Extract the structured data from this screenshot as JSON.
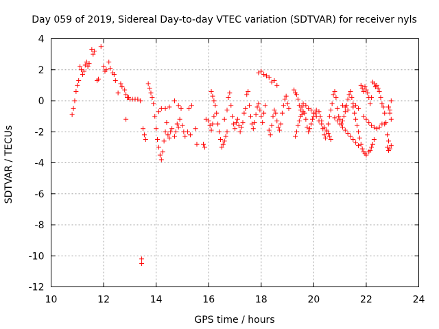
{
  "chart_data": {
    "type": "scatter",
    "title": "Day 059 of 2019, Sidereal Day-to-day VTEC variation (SDTVAR) for receiver nyls",
    "xlabel": "GPS time / hours",
    "ylabel": "SDTVAR / TECUs",
    "xlim": [
      10,
      24
    ],
    "ylim": [
      -12,
      4
    ],
    "xticks": [
      10,
      12,
      14,
      16,
      18,
      20,
      22,
      24
    ],
    "yticks": [
      -12,
      -10,
      -8,
      -6,
      -4,
      -2,
      0,
      2,
      4
    ],
    "grid": true,
    "marker": "+",
    "marker_color": "#ff0000",
    "series": [
      {
        "name": "SDTVAR",
        "points": [
          [
            10.8,
            -0.9
          ],
          [
            10.85,
            -0.5
          ],
          [
            10.9,
            0.0
          ],
          [
            10.95,
            0.6
          ],
          [
            11.0,
            1.0
          ],
          [
            11.05,
            1.3
          ],
          [
            11.1,
            2.2
          ],
          [
            11.15,
            2.0
          ],
          [
            11.2,
            1.7
          ],
          [
            11.25,
            1.9
          ],
          [
            11.3,
            2.3
          ],
          [
            11.35,
            2.5
          ],
          [
            11.4,
            2.2
          ],
          [
            11.45,
            2.4
          ],
          [
            11.55,
            3.3
          ],
          [
            11.6,
            3.0
          ],
          [
            11.65,
            3.2
          ],
          [
            11.75,
            1.3
          ],
          [
            11.8,
            1.4
          ],
          [
            11.9,
            3.5
          ],
          [
            12.0,
            2.2
          ],
          [
            12.05,
            1.9
          ],
          [
            12.1,
            2.0
          ],
          [
            12.2,
            2.5
          ],
          [
            12.25,
            2.1
          ],
          [
            12.35,
            1.8
          ],
          [
            12.4,
            1.7
          ],
          [
            12.45,
            1.3
          ],
          [
            12.55,
            0.5
          ],
          [
            12.65,
            1.1
          ],
          [
            12.7,
            0.9
          ],
          [
            12.8,
            0.7
          ],
          [
            12.85,
            0.4
          ],
          [
            12.9,
            0.2
          ],
          [
            12.95,
            0.2
          ],
          [
            13.0,
            0.1
          ],
          [
            13.1,
            0.1
          ],
          [
            13.2,
            0.1
          ],
          [
            13.3,
            0.1
          ],
          [
            13.4,
            0.0
          ],
          [
            12.85,
            -1.2
          ],
          [
            13.45,
            -10.2
          ],
          [
            13.45,
            -10.5
          ],
          [
            13.5,
            -1.8
          ],
          [
            13.55,
            -2.2
          ],
          [
            13.6,
            -2.5
          ],
          [
            13.7,
            1.1
          ],
          [
            13.75,
            0.8
          ],
          [
            13.8,
            0.5
          ],
          [
            13.85,
            0.2
          ],
          [
            13.9,
            -0.2
          ],
          [
            13.95,
            -1.0
          ],
          [
            14.0,
            -1.8
          ],
          [
            14.05,
            -2.5
          ],
          [
            14.1,
            -3.0
          ],
          [
            14.15,
            -3.5
          ],
          [
            14.2,
            -3.8
          ],
          [
            14.25,
            -3.3
          ],
          [
            14.3,
            -2.6
          ],
          [
            14.35,
            -2.0
          ],
          [
            14.1,
            -0.7
          ],
          [
            14.2,
            -0.5
          ],
          [
            14.35,
            -0.5
          ],
          [
            14.5,
            -0.4
          ],
          [
            14.4,
            -1.4
          ],
          [
            14.45,
            -2.2
          ],
          [
            14.5,
            -2.4
          ],
          [
            14.55,
            -2.0
          ],
          [
            14.6,
            -1.8
          ],
          [
            14.7,
            -2.3
          ],
          [
            14.75,
            -2.0
          ],
          [
            14.8,
            -1.5
          ],
          [
            14.85,
            -1.7
          ],
          [
            14.9,
            -1.2
          ],
          [
            15.0,
            -1.6
          ],
          [
            15.05,
            -2.0
          ],
          [
            15.1,
            -2.3
          ],
          [
            15.2,
            -2.0
          ],
          [
            15.3,
            -2.2
          ],
          [
            14.7,
            0.0
          ],
          [
            14.85,
            -0.3
          ],
          [
            14.95,
            -0.5
          ],
          [
            15.25,
            -0.5
          ],
          [
            15.35,
            -0.3
          ],
          [
            15.5,
            -1.8
          ],
          [
            15.55,
            -2.8
          ],
          [
            15.8,
            -2.8
          ],
          [
            15.85,
            -3.0
          ],
          [
            15.9,
            -1.2
          ],
          [
            16.0,
            -1.3
          ],
          [
            16.05,
            -1.6
          ],
          [
            16.1,
            -1.9
          ],
          [
            16.15,
            -1.5
          ],
          [
            16.2,
            -1.0
          ],
          [
            16.1,
            0.6
          ],
          [
            16.15,
            0.3
          ],
          [
            16.2,
            0.0
          ],
          [
            16.25,
            -0.3
          ],
          [
            16.3,
            -0.8
          ],
          [
            16.35,
            -1.5
          ],
          [
            16.4,
            -2.0
          ],
          [
            16.45,
            -2.5
          ],
          [
            16.5,
            -3.0
          ],
          [
            16.55,
            -2.8
          ],
          [
            16.6,
            -2.6
          ],
          [
            16.65,
            -2.3
          ],
          [
            16.7,
            -2.0
          ],
          [
            16.6,
            -1.2
          ],
          [
            16.7,
            -0.6
          ],
          [
            16.75,
            0.2
          ],
          [
            16.8,
            0.5
          ],
          [
            16.85,
            -0.3
          ],
          [
            16.9,
            -1.0
          ],
          [
            16.95,
            -1.5
          ],
          [
            17.0,
            -1.8
          ],
          [
            17.05,
            -1.4
          ],
          [
            17.1,
            -1.2
          ],
          [
            17.15,
            -1.6
          ],
          [
            17.2,
            -2.0
          ],
          [
            17.25,
            -1.7
          ],
          [
            17.3,
            -1.4
          ],
          [
            17.35,
            -0.8
          ],
          [
            17.4,
            -0.5
          ],
          [
            17.45,
            0.4
          ],
          [
            17.5,
            0.6
          ],
          [
            17.55,
            -0.3
          ],
          [
            17.6,
            -1.0
          ],
          [
            17.65,
            -1.5
          ],
          [
            17.7,
            -1.8
          ],
          [
            17.75,
            -1.4
          ],
          [
            17.8,
            -0.9
          ],
          [
            17.85,
            -0.4
          ],
          [
            17.9,
            -0.2
          ],
          [
            17.95,
            -0.6
          ],
          [
            18.0,
            -1.0
          ],
          [
            18.05,
            -1.4
          ],
          [
            18.1,
            -0.8
          ],
          [
            18.15,
            -0.3
          ],
          [
            17.9,
            1.8
          ],
          [
            18.0,
            1.9
          ],
          [
            18.1,
            1.7
          ],
          [
            18.2,
            1.6
          ],
          [
            18.3,
            1.5
          ],
          [
            18.4,
            1.2
          ],
          [
            18.5,
            1.3
          ],
          [
            18.6,
            1.0
          ],
          [
            18.3,
            -1.9
          ],
          [
            18.35,
            -2.2
          ],
          [
            18.4,
            -1.6
          ],
          [
            18.45,
            -1.0
          ],
          [
            18.5,
            -0.6
          ],
          [
            18.55,
            -0.8
          ],
          [
            18.6,
            -1.3
          ],
          [
            18.65,
            -1.7
          ],
          [
            18.7,
            -1.9
          ],
          [
            18.75,
            -1.5
          ],
          [
            18.8,
            -0.8
          ],
          [
            18.85,
            -0.3
          ],
          [
            18.9,
            0.1
          ],
          [
            18.95,
            0.3
          ],
          [
            19.0,
            -0.2
          ],
          [
            19.05,
            -0.5
          ],
          [
            19.25,
            0.7
          ],
          [
            19.3,
            0.5
          ],
          [
            19.35,
            0.4
          ],
          [
            19.4,
            0.1
          ],
          [
            19.45,
            -0.3
          ],
          [
            19.5,
            -0.6
          ],
          [
            19.55,
            -0.4
          ],
          [
            19.6,
            -0.2
          ],
          [
            19.7,
            -0.3
          ],
          [
            19.8,
            -0.5
          ],
          [
            19.9,
            -0.6
          ],
          [
            20.0,
            -0.8
          ],
          [
            20.1,
            -1.0
          ],
          [
            20.2,
            -1.3
          ],
          [
            20.3,
            -1.5
          ],
          [
            20.4,
            -1.7
          ],
          [
            20.5,
            -1.9
          ],
          [
            20.55,
            -2.1
          ],
          [
            20.6,
            -2.3
          ],
          [
            20.65,
            -2.5
          ],
          [
            19.3,
            -2.3
          ],
          [
            19.35,
            -2.0
          ],
          [
            19.4,
            -1.6
          ],
          [
            19.45,
            -1.3
          ],
          [
            19.5,
            -1.0
          ],
          [
            19.55,
            -0.9
          ],
          [
            19.6,
            -0.7
          ],
          [
            19.65,
            -0.8
          ],
          [
            19.7,
            -1.2
          ],
          [
            19.75,
            -1.7
          ],
          [
            19.8,
            -2.0
          ],
          [
            19.85,
            -1.8
          ],
          [
            19.9,
            -1.5
          ],
          [
            19.95,
            -1.2
          ],
          [
            20.0,
            -1.0
          ],
          [
            20.05,
            -0.8
          ],
          [
            20.1,
            -0.6
          ],
          [
            20.2,
            -0.7
          ],
          [
            20.25,
            -1.0
          ],
          [
            20.3,
            -1.3
          ],
          [
            20.35,
            -1.8
          ],
          [
            20.4,
            -2.2
          ],
          [
            20.45,
            -2.4
          ],
          [
            20.5,
            -2.0
          ],
          [
            20.55,
            -1.5
          ],
          [
            20.6,
            -1.0
          ],
          [
            20.65,
            -0.6
          ],
          [
            20.7,
            -0.2
          ],
          [
            20.75,
            0.4
          ],
          [
            20.8,
            0.6
          ],
          [
            20.85,
            0.2
          ],
          [
            20.9,
            -0.5
          ],
          [
            20.95,
            -1.0
          ],
          [
            21.0,
            -1.2
          ],
          [
            21.05,
            -1.5
          ],
          [
            21.1,
            -1.3
          ],
          [
            21.15,
            -1.0
          ],
          [
            21.2,
            -0.7
          ],
          [
            21.25,
            -0.3
          ],
          [
            21.3,
            0.1
          ],
          [
            21.35,
            0.4
          ],
          [
            21.4,
            0.6
          ],
          [
            21.45,
            0.2
          ],
          [
            21.5,
            -0.4
          ],
          [
            21.55,
            -0.8
          ],
          [
            21.6,
            -1.2
          ],
          [
            21.65,
            -1.6
          ],
          [
            21.7,
            -2.0
          ],
          [
            21.75,
            -2.4
          ],
          [
            21.8,
            -2.8
          ],
          [
            20.8,
            -1.1
          ],
          [
            20.9,
            -1.3
          ],
          [
            21.0,
            -1.5
          ],
          [
            21.1,
            -1.7
          ],
          [
            21.2,
            -1.9
          ],
          [
            21.3,
            -2.1
          ],
          [
            21.4,
            -2.3
          ],
          [
            21.5,
            -2.5
          ],
          [
            21.6,
            -2.7
          ],
          [
            21.7,
            -2.9
          ],
          [
            21.1,
            -0.3
          ],
          [
            21.2,
            -0.4
          ],
          [
            21.3,
            -0.6
          ],
          [
            21.5,
            -0.2
          ],
          [
            21.6,
            -0.3
          ],
          [
            21.7,
            -0.5
          ],
          [
            21.8,
            1.0
          ],
          [
            21.85,
            0.8
          ],
          [
            21.9,
            0.6
          ],
          [
            21.95,
            0.9
          ],
          [
            22.0,
            0.7
          ],
          [
            22.05,
            0.5
          ],
          [
            22.1,
            0.2
          ],
          [
            22.15,
            -0.2
          ],
          [
            22.2,
            0.2
          ],
          [
            22.25,
            1.2
          ],
          [
            22.3,
            1.1
          ],
          [
            22.35,
            0.9
          ],
          [
            22.4,
            1.0
          ],
          [
            22.45,
            0.8
          ],
          [
            22.5,
            0.6
          ],
          [
            22.55,
            0.2
          ],
          [
            22.6,
            -0.2
          ],
          [
            22.65,
            -0.4
          ],
          [
            22.7,
            -0.8
          ],
          [
            22.75,
            -1.4
          ],
          [
            22.8,
            -2.2
          ],
          [
            22.85,
            -2.6
          ],
          [
            21.85,
            -3.1
          ],
          [
            21.9,
            -3.3
          ],
          [
            21.95,
            -3.4
          ],
          [
            22.0,
            -3.5
          ],
          [
            22.1,
            -3.3
          ],
          [
            22.15,
            -3.2
          ],
          [
            22.2,
            -3.0
          ],
          [
            22.25,
            -2.8
          ],
          [
            22.3,
            -2.5
          ],
          [
            21.9,
            -1.0
          ],
          [
            22.0,
            -1.2
          ],
          [
            22.1,
            -1.4
          ],
          [
            22.2,
            -1.6
          ],
          [
            22.3,
            -1.7
          ],
          [
            22.4,
            -1.8
          ],
          [
            22.5,
            -1.7
          ],
          [
            22.6,
            -1.5
          ],
          [
            22.7,
            -1.5
          ],
          [
            22.8,
            -3.0
          ],
          [
            22.85,
            -3.2
          ],
          [
            22.9,
            -3.1
          ],
          [
            22.95,
            -2.9
          ],
          [
            22.85,
            -0.4
          ],
          [
            22.9,
            -0.6
          ],
          [
            22.95,
            0.0
          ],
          [
            22.9,
            -0.8
          ],
          [
            22.95,
            -1.2
          ]
        ]
      }
    ]
  }
}
